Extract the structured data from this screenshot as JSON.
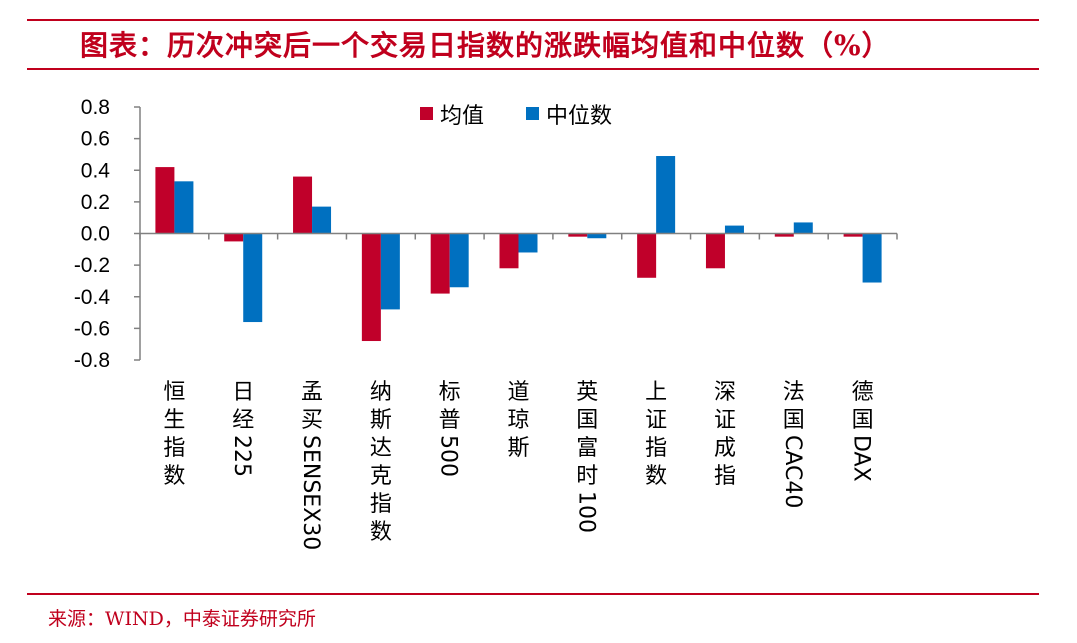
{
  "title": "图表：历次冲突后一个交易日指数的涨跌幅均值和中位数（%）",
  "source": "来源：WIND，中泰证券研究所",
  "colors": {
    "mean": "#c0002a",
    "median": "#0070c0",
    "accent": "#c0001d"
  },
  "chart_data": {
    "type": "bar",
    "title": "图表：历次冲突后一个交易日指数的涨跌幅均值和中位数（%）",
    "xlabel": "",
    "ylabel": "",
    "ylim": [
      -0.8,
      0.8
    ],
    "yticks": [
      "0.8",
      "0.6",
      "0.4",
      "0.2",
      "0.0",
      "-0.2",
      "-0.4",
      "-0.6",
      "-0.8"
    ],
    "ytick_values": [
      0.8,
      0.6,
      0.4,
      0.2,
      0.0,
      -0.2,
      -0.4,
      -0.6,
      -0.8
    ],
    "categories": [
      "恒生指数",
      "日经225",
      "孟买SENSEX30",
      "纳斯达克指数",
      "标普500",
      "道琼斯",
      "英国富时100",
      "上证指数",
      "深证成指",
      "法国CAC40",
      "德国DAX"
    ],
    "series": [
      {
        "name": "均值",
        "values": [
          0.42,
          -0.05,
          0.36,
          -0.68,
          -0.38,
          -0.22,
          -0.02,
          -0.28,
          -0.22,
          -0.02,
          -0.02
        ]
      },
      {
        "name": "中位数",
        "values": [
          0.33,
          -0.56,
          0.17,
          -0.48,
          -0.34,
          -0.12,
          -0.03,
          0.49,
          0.05,
          0.07,
          -0.31
        ]
      }
    ],
    "legend": "top-center",
    "grid": false
  }
}
